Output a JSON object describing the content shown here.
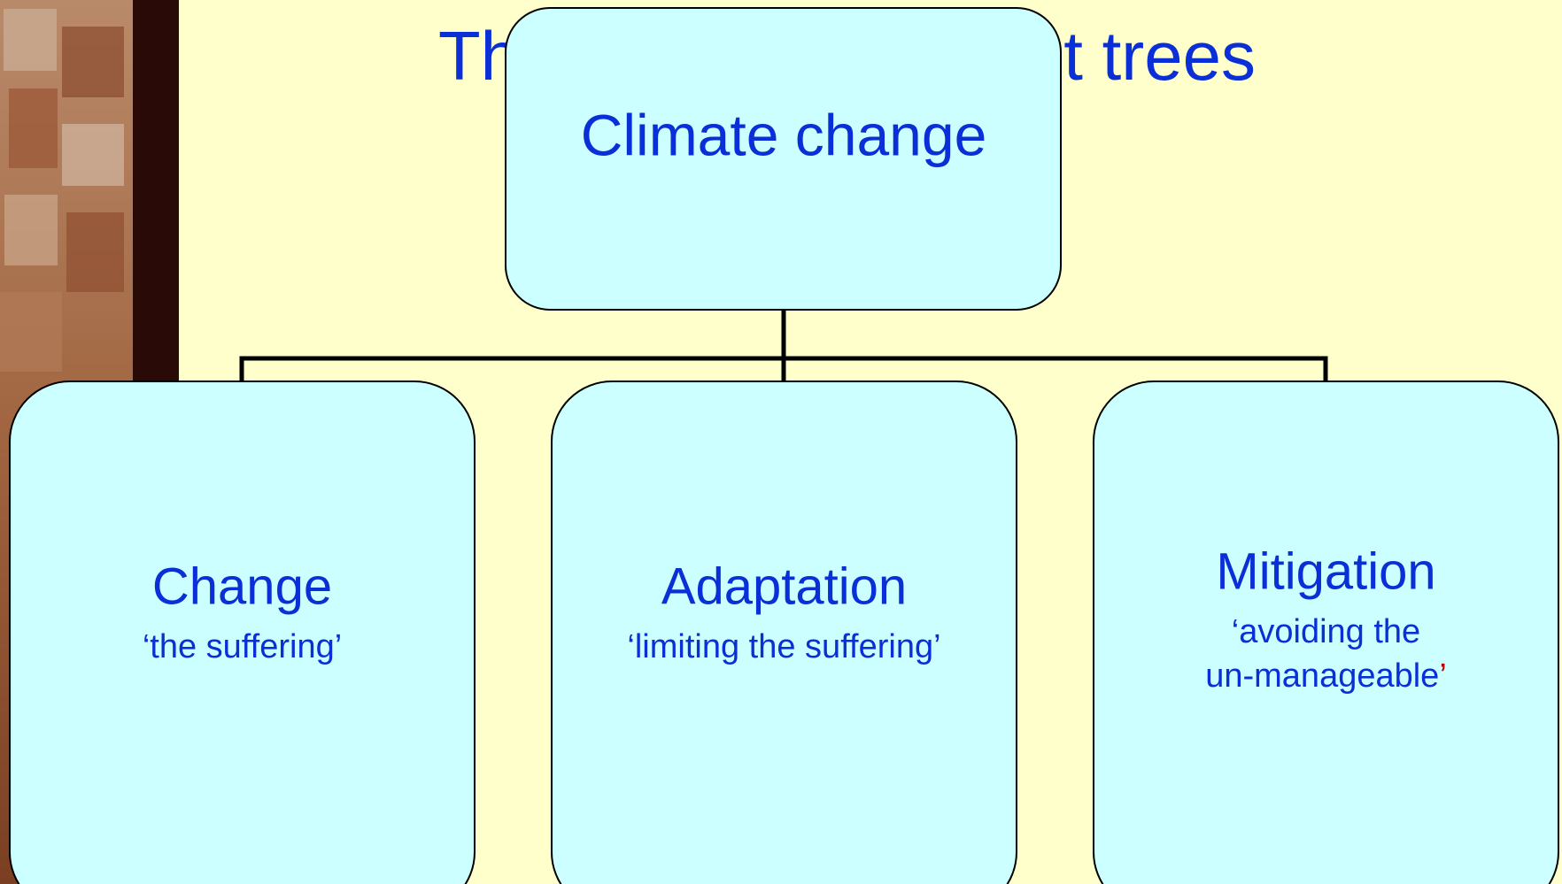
{
  "header": {
    "title_left": "Th",
    "title_right": "t trees"
  },
  "root": {
    "label": "Climate change"
  },
  "nodes": [
    {
      "label": "Change",
      "subtitle_lines": [
        "‘the suffering’"
      ]
    },
    {
      "label": "Adaptation",
      "subtitle_lines": [
        "‘limiting the suffering’"
      ]
    },
    {
      "label": "Mitigation",
      "subtitle_lines": [
        "‘avoiding the",
        "un-manageable"
      ],
      "closing_mark": "’"
    }
  ]
}
